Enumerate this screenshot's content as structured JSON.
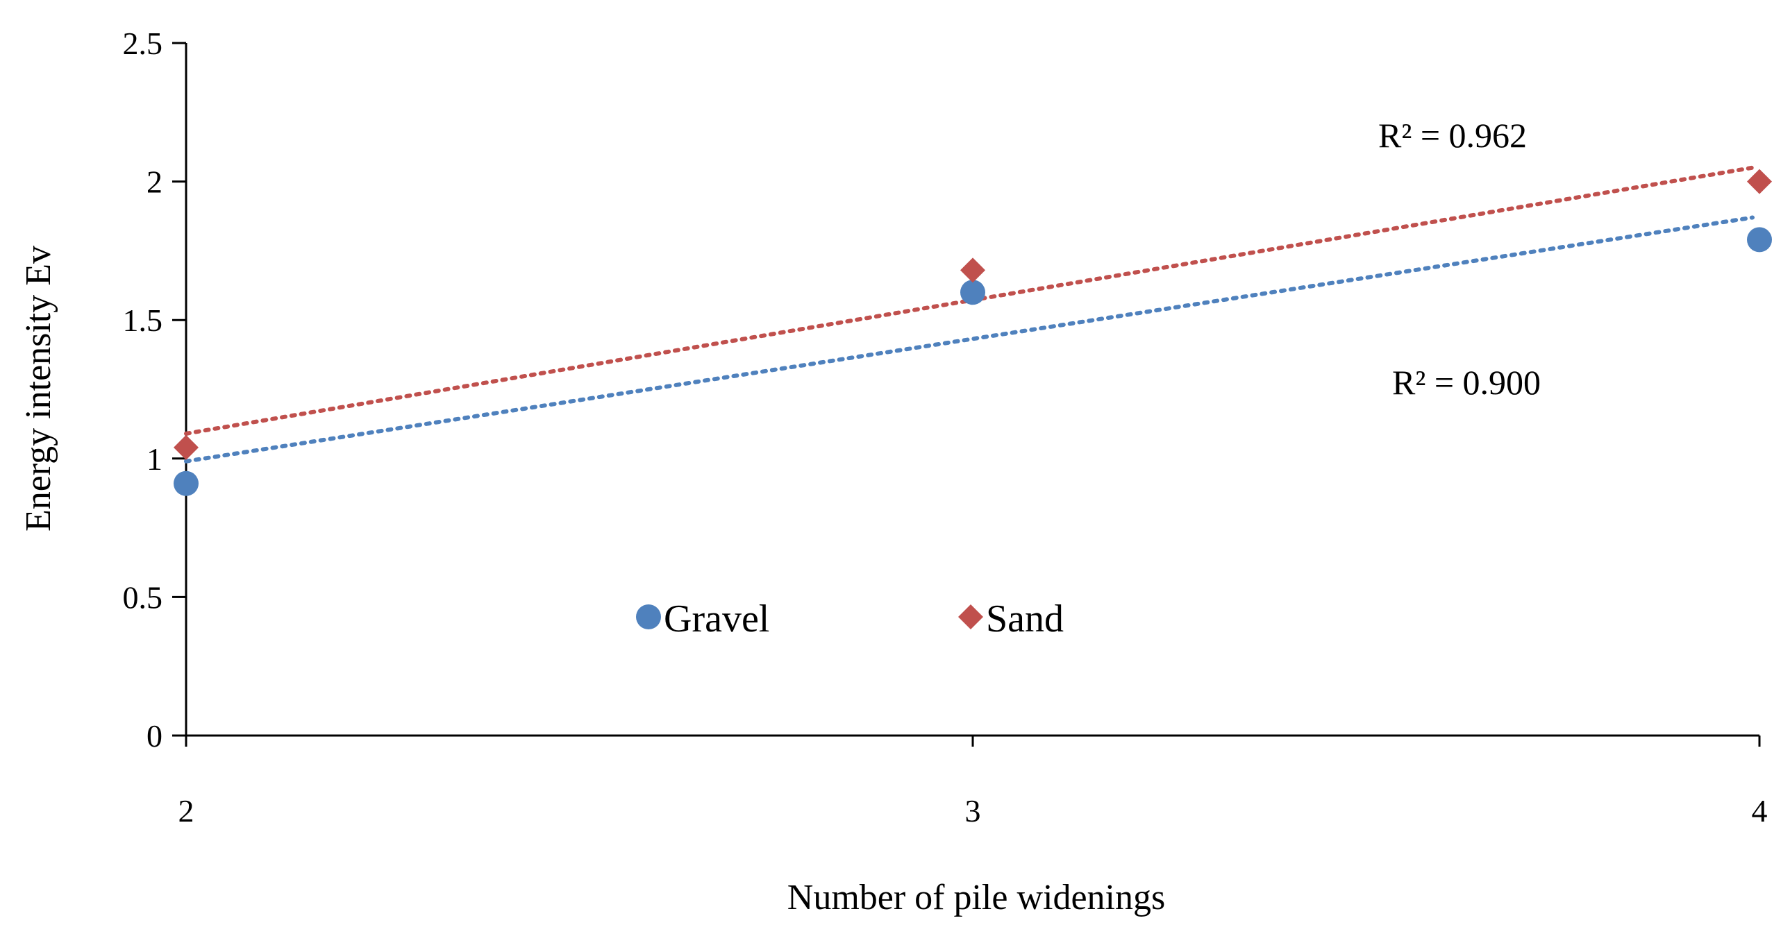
{
  "chart_data": {
    "type": "scatter",
    "xlabel": "Number of pile widenings",
    "ylabel": "Energy intensity Ev",
    "xlim": [
      2,
      4
    ],
    "ylim": [
      0,
      2.5
    ],
    "x_ticks": [
      "2",
      "3",
      "4"
    ],
    "y_ticks": [
      "0",
      "0.5",
      "1",
      "1.5",
      "2",
      "2.5"
    ],
    "grid": false,
    "legend_position": "inside-bottom-center",
    "series": [
      {
        "name": "Gravel",
        "marker": "circle",
        "color": "#4F81BD",
        "x": [
          2,
          3,
          4
        ],
        "y": [
          0.91,
          1.6,
          1.79
        ],
        "trendline": {
          "type": "linear",
          "y_start": 0.99,
          "y_end": 1.87,
          "r2_label": "R² = 0.900"
        }
      },
      {
        "name": "Sand",
        "marker": "diamond",
        "color": "#C0504D",
        "x": [
          2,
          3,
          4
        ],
        "y": [
          1.04,
          1.68,
          2.0
        ],
        "trendline": {
          "type": "linear",
          "y_start": 1.09,
          "y_end": 2.05,
          "r2_label": "R² = 0.962"
        }
      }
    ]
  }
}
